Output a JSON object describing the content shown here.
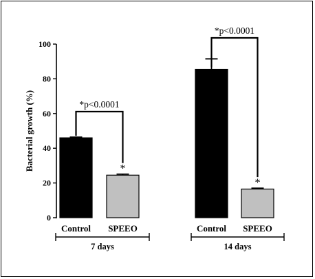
{
  "chart_data": {
    "type": "bar",
    "ylabel": "Bacterial growth  (%)",
    "ylim": [
      0,
      100
    ],
    "yticks": [
      0,
      20,
      40,
      60,
      80,
      100
    ],
    "groups": [
      {
        "label": "7 days",
        "bars": [
          {
            "category": "Control",
            "value": 46,
            "error": 0.4,
            "color": "#000000"
          },
          {
            "category": "SPEEO",
            "value": 24.5,
            "error": 0.6,
            "color": "#c0c0c0",
            "marker": "*"
          }
        ],
        "annotation": "*p<0.0001"
      },
      {
        "label": "14 days",
        "bars": [
          {
            "category": "Control",
            "value": 85.5,
            "error": 6,
            "color": "#000000"
          },
          {
            "category": "SPEEO",
            "value": 16.5,
            "error": 0.5,
            "color": "#c0c0c0",
            "marker": "*"
          }
        ],
        "annotation": "*p<0.0001"
      }
    ],
    "grid": false,
    "legend": "none"
  }
}
